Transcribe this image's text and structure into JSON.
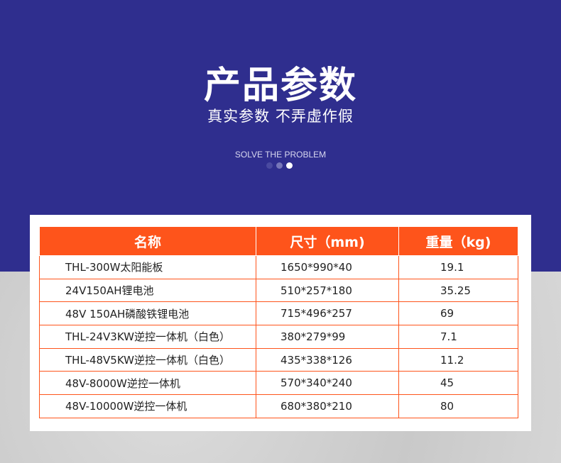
{
  "header": {
    "title": "产品参数",
    "subtitle": "真实参数 不弄虚作假",
    "tagline": "SOLVE THE PROBLEM"
  },
  "colors": {
    "banner": "#2f2e8e",
    "accent": "#fe541b"
  },
  "table": {
    "columns": [
      "名称",
      "尺寸（mm)",
      "重量（kg)"
    ],
    "rows": [
      [
        "THL-300W太阳能板",
        "1650*990*40",
        "19.1"
      ],
      [
        "24V150AH锂电池",
        "510*257*180",
        "35.25"
      ],
      [
        "48V 150AH磷酸铁锂电池",
        " 715*496*257",
        "69"
      ],
      [
        "THL-24V3KW逆控一体机（白色）",
        "380*279*99",
        "7.1"
      ],
      [
        "THL-48V5KW逆控一体机（白色）",
        "435*338*126",
        "11.2"
      ],
      [
        "48V-8000W逆控一体机",
        "570*340*240",
        "45"
      ],
      [
        "48V-10000W逆控一体机",
        "680*380*210",
        "80"
      ]
    ]
  }
}
